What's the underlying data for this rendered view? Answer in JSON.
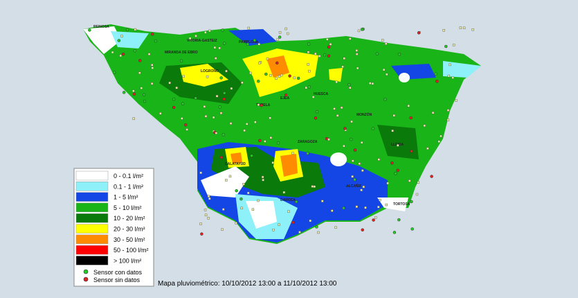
{
  "map": {
    "caption": "Mapa pluviométrico: 10/10/2012 13:00 a 11/10/2012 13:00",
    "places": [
      "REINOSA",
      "VITORIA-GASTEIZ",
      "PAMPLONA",
      "MIRANDA DE EBRO",
      "LOGROÑO",
      "HUESCA",
      "TUDELA",
      "EJEA",
      "MONZÓN",
      "ZARAGOZA",
      "LLEIDA",
      "CALATAYUD",
      "ALCAÑIZ",
      "DAROCA",
      "TORTOSA"
    ]
  },
  "legend": {
    "items": [
      {
        "label": "0 - 0.1 l/m²",
        "color": "#ffffff"
      },
      {
        "label": "0.1 - 1 l/m²",
        "color": "#8ef0f8"
      },
      {
        "label": "1 - 5 l/m²",
        "color": "#1446e6"
      },
      {
        "label": "5 - 10 l/m²",
        "color": "#18b418"
      },
      {
        "label": "10 - 20 l/m²",
        "color": "#0a7a0a"
      },
      {
        "label": "20 - 30 l/m²",
        "color": "#ffff00"
      },
      {
        "label": "30 - 50 l/m²",
        "color": "#ff8c00"
      },
      {
        "label": "50 - 100 l/m²",
        "color": "#ff0000"
      },
      {
        "label": "> 100 l/m²",
        "color": "#000000"
      }
    ],
    "sensors": [
      {
        "label": "Sensor con datos",
        "color": "#22cc22"
      },
      {
        "label": "Sensor sin datos",
        "color": "#dd2222"
      }
    ]
  }
}
